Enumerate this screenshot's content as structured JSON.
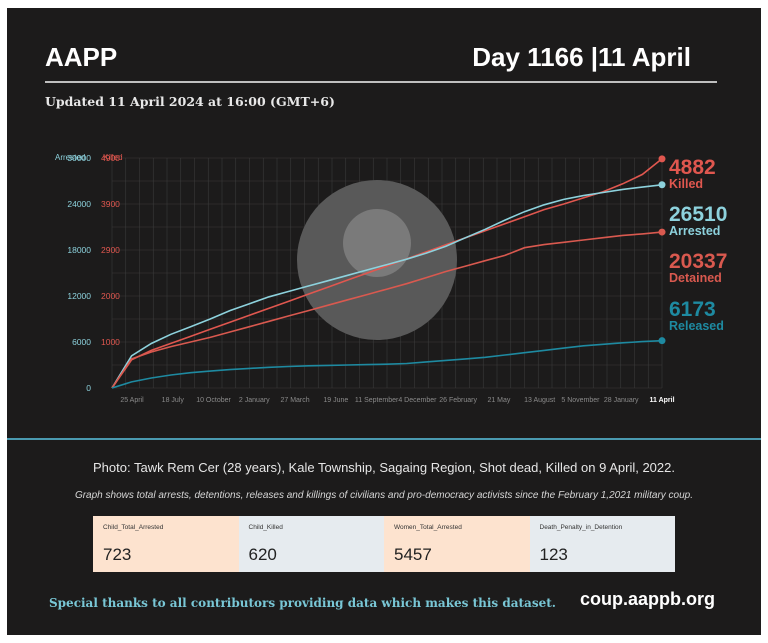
{
  "header": {
    "brand": "AAPP",
    "day_label": "Day 1166 |11 April",
    "updated": "Updated 11 April 2024 at 16:00 (GMT+6)"
  },
  "photo_caption": "Photo: Tawk Rem Cer (28 years), Kale Township, Sagaing Region, Shot dead, Killed on 9 April, 2022.",
  "graph_note": "Graph shows total arrests, detentions, releases and killings of civilians and pro-democracy activists since the February 1,2021 military coup.",
  "stats": [
    {
      "label": "Child_Total_Arrested",
      "value": "723"
    },
    {
      "label": "Child_Killed",
      "value": "620"
    },
    {
      "label": "Women_Total_Arrested",
      "value": "5457"
    },
    {
      "label": "Death_Penalty_in_Detention",
      "value": "123"
    }
  ],
  "footer": {
    "thanks": "Special thanks to all contributors providing data which makes this dataset.",
    "site": "coup.aappb.org"
  },
  "chart_data": {
    "type": "line",
    "left_axis_label": "Arrested",
    "right_axis_label": "Killed",
    "left_ticks": [
      "0",
      "6000",
      "12000",
      "18000",
      "24000",
      "30000"
    ],
    "right_ticks": [
      "1000",
      "2000",
      "2900",
      "3900",
      "4900"
    ],
    "ylim_left": [
      0,
      30000
    ],
    "ylim_right": [
      0,
      4900
    ],
    "x_ticks": [
      "25 April",
      "18 July",
      "10 October",
      "2 January",
      "27 March",
      "19 June",
      "11 September",
      "4 December",
      "26 February",
      "21 May",
      "13 August",
      "5 November",
      "28 January",
      "11 April"
    ],
    "grid": true,
    "colors": {
      "killed": "#e0574f",
      "arrested": "#8dd2dd",
      "detained": "#d9594f",
      "released": "#1e8aa1"
    },
    "series": [
      {
        "name": "Killed",
        "end_value": "4882",
        "values": [
          0,
          600,
          800,
          950,
          1100,
          1250,
          1400,
          1550,
          1700,
          1850,
          2000,
          2150,
          2300,
          2450,
          2600,
          2750,
          2900,
          3050,
          3200,
          3350,
          3500,
          3650,
          3800,
          3920,
          4050,
          4180,
          4350,
          4550,
          4882
        ]
      },
      {
        "name": "Arrested",
        "end_value": "26510",
        "values": [
          0,
          4200,
          5800,
          7000,
          8000,
          9000,
          10100,
          11000,
          11900,
          12600,
          13300,
          14000,
          14700,
          15400,
          16100,
          16800,
          17600,
          18500,
          19600,
          20700,
          21900,
          23000,
          23900,
          24600,
          25100,
          25500,
          25900,
          26200,
          26510
        ]
      },
      {
        "name": "Detained",
        "end_value": "20337",
        "values": [
          0,
          3800,
          4700,
          5400,
          6000,
          6600,
          7300,
          8000,
          8700,
          9400,
          10100,
          10800,
          11500,
          12200,
          12900,
          13600,
          14400,
          15200,
          15900,
          16600,
          17300,
          18300,
          18700,
          19000,
          19300,
          19600,
          19900,
          20100,
          20337
        ]
      },
      {
        "name": "Released",
        "end_value": "6173",
        "values": [
          0,
          800,
          1300,
          1700,
          2000,
          2200,
          2400,
          2550,
          2700,
          2800,
          2900,
          2950,
          3000,
          3050,
          3100,
          3200,
          3400,
          3600,
          3800,
          4000,
          4300,
          4600,
          4900,
          5200,
          5500,
          5700,
          5900,
          6050,
          6173
        ]
      }
    ]
  }
}
